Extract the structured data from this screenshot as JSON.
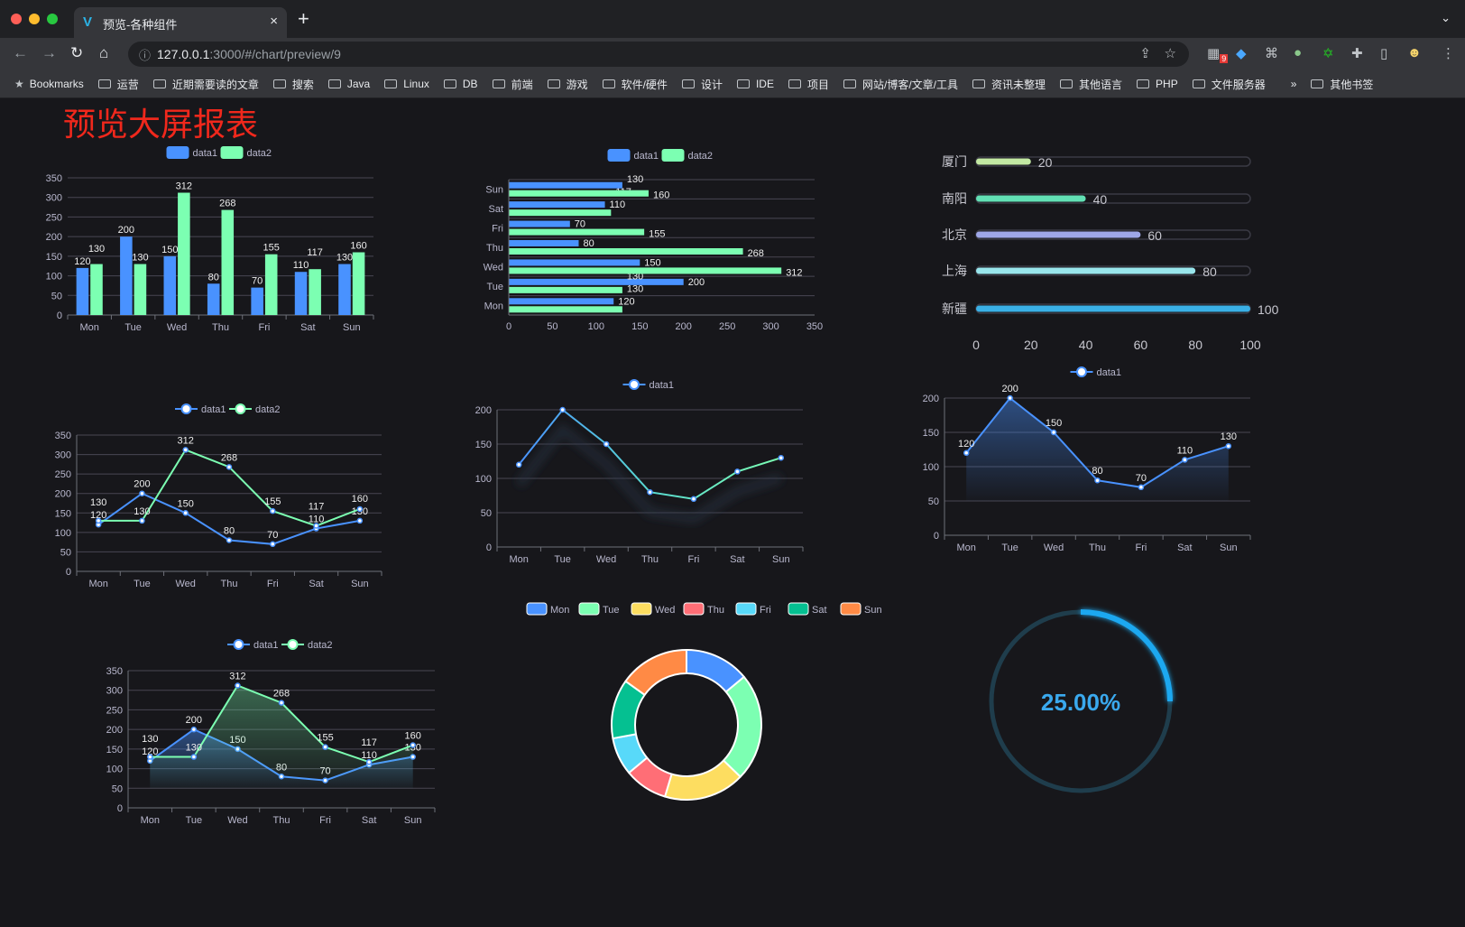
{
  "browser": {
    "tab_title": "预览-各种组件",
    "tab_close": "×",
    "new_tab": "+",
    "tab_menu": "⌄",
    "url_host": "127.0.0.1",
    "url_rest": ":3000/#/chart/preview/9",
    "extension_badge": "9",
    "bookmarks_label": "Bookmarks",
    "bookmarks": [
      "运营",
      "近期需要读的文章",
      "搜索",
      "Java",
      "Linux",
      "DB",
      "前端",
      "游戏",
      "软件/硬件",
      "设计",
      "IDE",
      "项目",
      "网站/博客/文章/工具",
      "资讯未整理",
      "其他语言",
      "PHP",
      "文件服务器"
    ],
    "more": "»",
    "other_bookmarks": "其他书签"
  },
  "page": {
    "title": "预览大屏报表"
  },
  "colors": {
    "data1": "#4992ff",
    "data2": "#7cffb2",
    "axis_text": "#b9b8ce",
    "grid": "#484753",
    "title": "#f0281c",
    "gauge": "#1fa8f0",
    "gauge_track": "#1f3d4c"
  },
  "chart_data": [
    {
      "type": "bar",
      "orientation": "vertical",
      "legend": [
        "data1",
        "data2"
      ],
      "categories": [
        "Mon",
        "Tue",
        "Wed",
        "Thu",
        "Fri",
        "Sat",
        "Sun"
      ],
      "series": [
        {
          "name": "data1",
          "values": [
            120,
            200,
            150,
            80,
            70,
            110,
            130
          ]
        },
        {
          "name": "data2",
          "values": [
            130,
            130,
            312,
            268,
            155,
            117,
            160
          ]
        }
      ],
      "ylim": [
        0,
        350
      ],
      "yticks": [
        0,
        50,
        100,
        150,
        200,
        250,
        300,
        350
      ],
      "grid": true,
      "data_labels": true,
      "legend_position": "top"
    },
    {
      "type": "bar",
      "orientation": "horizontal",
      "legend": [
        "data1",
        "data2"
      ],
      "categories": [
        "Mon",
        "Tue",
        "Wed",
        "Thu",
        "Fri",
        "Sat",
        "Sun"
      ],
      "series": [
        {
          "name": "data1",
          "values": [
            120,
            200,
            150,
            80,
            70,
            110,
            130
          ]
        },
        {
          "name": "data2",
          "values": [
            130,
            130,
            312,
            268,
            155,
            117,
            160
          ]
        }
      ],
      "xlim": [
        0,
        350
      ],
      "xticks": [
        0,
        50,
        100,
        150,
        200,
        250,
        300,
        350
      ],
      "grid": true,
      "data_labels": true,
      "legend_position": "top"
    },
    {
      "type": "bar",
      "orientation": "horizontal",
      "style": "progress",
      "categories": [
        "厦门",
        "南阳",
        "北京",
        "上海",
        "新疆"
      ],
      "values": [
        20,
        40,
        60,
        80,
        100
      ],
      "colors": [
        "#c3e9a3",
        "#62e0b4",
        "#9ea7e8",
        "#99e6ec",
        "#3ab0e6"
      ],
      "xlim": [
        0,
        100
      ],
      "xticks": [
        0,
        20,
        40,
        60,
        80,
        100
      ],
      "data_labels": true
    },
    {
      "type": "line",
      "legend": [
        "data1",
        "data2"
      ],
      "categories": [
        "Mon",
        "Tue",
        "Wed",
        "Thu",
        "Fri",
        "Sat",
        "Sun"
      ],
      "series": [
        {
          "name": "data1",
          "values": [
            120,
            200,
            150,
            80,
            70,
            110,
            130
          ]
        },
        {
          "name": "data2",
          "values": [
            130,
            130,
            312,
            268,
            155,
            117,
            160
          ]
        }
      ],
      "ylim": [
        0,
        350
      ],
      "yticks": [
        0,
        50,
        100,
        150,
        200,
        250,
        300,
        350
      ],
      "grid": true,
      "data_labels": true,
      "legend_position": "top"
    },
    {
      "type": "line",
      "legend": [
        "data1"
      ],
      "categories": [
        "Mon",
        "Tue",
        "Wed",
        "Thu",
        "Fri",
        "Sat",
        "Sun"
      ],
      "series": [
        {
          "name": "data1",
          "values": [
            120,
            200,
            150,
            80,
            70,
            110,
            130
          ]
        }
      ],
      "gradient": [
        "#4992ff",
        "#7cffb2"
      ],
      "ylim": [
        0,
        200
      ],
      "yticks": [
        0,
        50,
        100,
        150,
        200
      ],
      "grid": true,
      "data_labels": false,
      "legend_position": "top"
    },
    {
      "type": "area",
      "legend": [
        "data1"
      ],
      "categories": [
        "Mon",
        "Tue",
        "Wed",
        "Thu",
        "Fri",
        "Sat",
        "Sun"
      ],
      "series": [
        {
          "name": "data1",
          "values": [
            120,
            200,
            150,
            80,
            70,
            110,
            130
          ]
        }
      ],
      "ylim": [
        0,
        200
      ],
      "yticks": [
        0,
        50,
        100,
        150,
        200
      ],
      "grid": true,
      "data_labels": true,
      "legend_position": "top"
    },
    {
      "type": "area",
      "legend": [
        "data1",
        "data2"
      ],
      "categories": [
        "Mon",
        "Tue",
        "Wed",
        "Thu",
        "Fri",
        "Sat",
        "Sun"
      ],
      "series": [
        {
          "name": "data1",
          "values": [
            120,
            200,
            150,
            80,
            70,
            110,
            130
          ]
        },
        {
          "name": "data2",
          "values": [
            130,
            130,
            312,
            268,
            155,
            117,
            160
          ]
        }
      ],
      "ylim": [
        0,
        350
      ],
      "yticks": [
        0,
        50,
        100,
        150,
        200,
        250,
        300,
        350
      ],
      "grid": true,
      "data_labels": true,
      "legend_position": "top"
    },
    {
      "type": "pie",
      "donut": true,
      "categories": [
        "Mon",
        "Tue",
        "Wed",
        "Thu",
        "Fri",
        "Sat",
        "Sun"
      ],
      "values": [
        120,
        200,
        150,
        80,
        70,
        110,
        130
      ],
      "colors": [
        "#4992ff",
        "#7cffb2",
        "#fddd60",
        "#ff6e76",
        "#58d9f9",
        "#05c091",
        "#ff8a45"
      ],
      "legend_position": "top"
    },
    {
      "type": "gauge",
      "value": 25,
      "max": 100,
      "label": "25.00%"
    }
  ]
}
